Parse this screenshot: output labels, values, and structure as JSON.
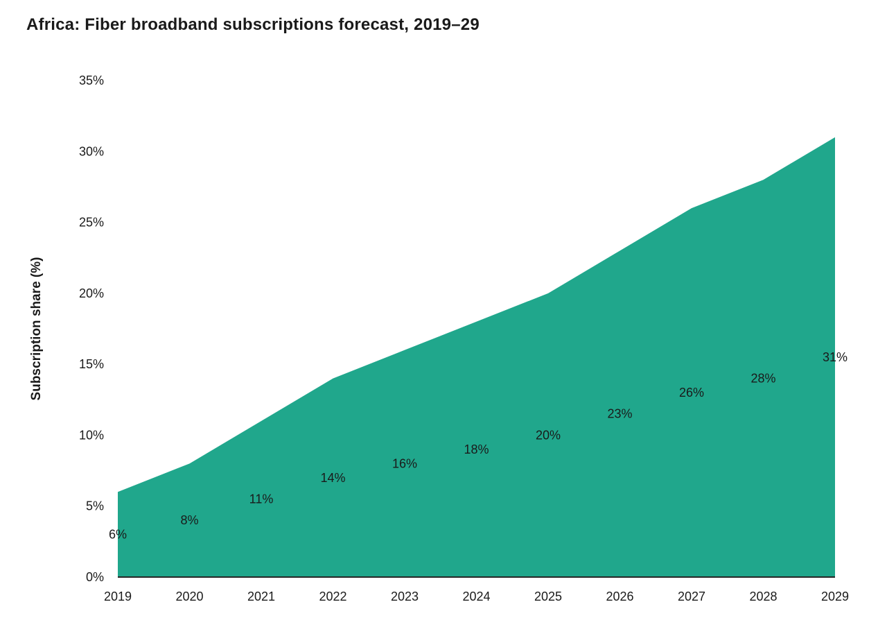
{
  "chart_data": {
    "type": "area",
    "title": "Africa: Fiber broadband subscriptions forecast, 2019–29",
    "ylabel": "Subscription share (%)",
    "xlabel": "",
    "x": [
      2019,
      2020,
      2021,
      2022,
      2023,
      2024,
      2025,
      2026,
      2027,
      2028,
      2029
    ],
    "x_labels": [
      "2019",
      "2020",
      "2021",
      "2022",
      "2023",
      "2024",
      "2025",
      "2026",
      "2027",
      "2028",
      "2029"
    ],
    "values": [
      6,
      8,
      11,
      14,
      16,
      18,
      20,
      23,
      26,
      28,
      31
    ],
    "data_labels": [
      "6%",
      "8%",
      "11%",
      "14%",
      "16%",
      "18%",
      "20%",
      "23%",
      "26%",
      "28%",
      "31%"
    ],
    "ylim": [
      0,
      35
    ],
    "yticks": [
      0,
      5,
      10,
      15,
      20,
      25,
      30,
      35
    ],
    "ytick_labels": [
      "0%",
      "5%",
      "10%",
      "15%",
      "20%",
      "25%",
      "30%",
      "35%"
    ],
    "grid": false,
    "legend": "none",
    "fill_color": "#20A78C",
    "axis_color": "#262626",
    "text_color": "#1a1a1a"
  }
}
